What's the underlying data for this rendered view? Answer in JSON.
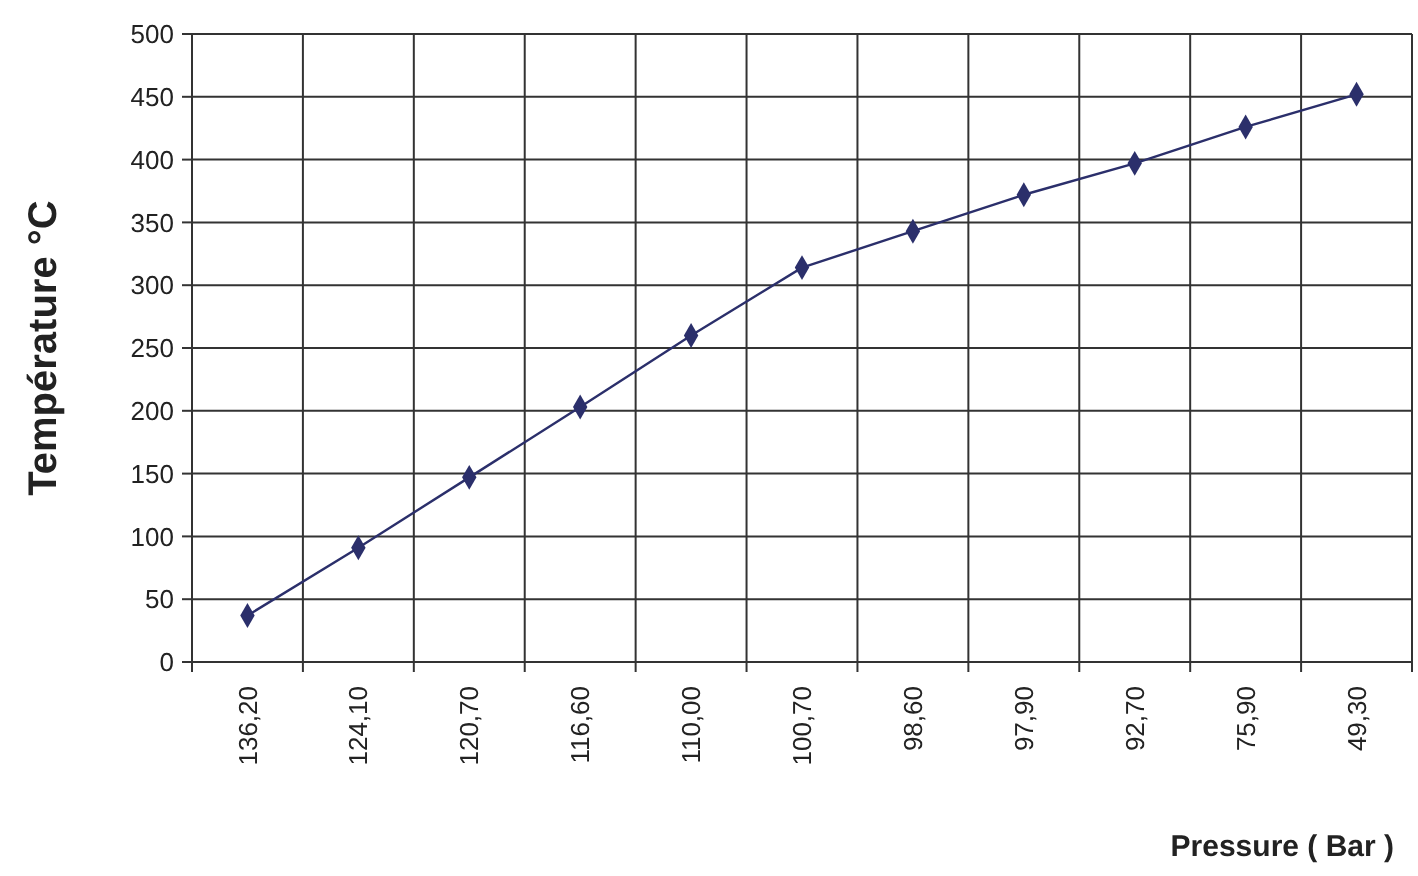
{
  "chart_data": {
    "type": "line",
    "xlabel": "Pressure ( Bar )",
    "ylabel": "Température °C",
    "categories": [
      "136,20",
      "124,10",
      "120,70",
      "116,60",
      "110,00",
      "100,70",
      "98,60",
      "97,90",
      "92,70",
      "75,90",
      "49,30"
    ],
    "series": [
      {
        "color": "#2b2f6b",
        "values": [
          37,
          91,
          147,
          203,
          260,
          314,
          343,
          372,
          397,
          426,
          452
        ]
      }
    ],
    "ylim": [
      0,
      500
    ],
    "yticks": [
      0,
      50,
      100,
      150,
      200,
      250,
      300,
      350,
      400,
      450,
      500
    ],
    "grid": true,
    "marker": "diamond",
    "line_style": "solid"
  }
}
